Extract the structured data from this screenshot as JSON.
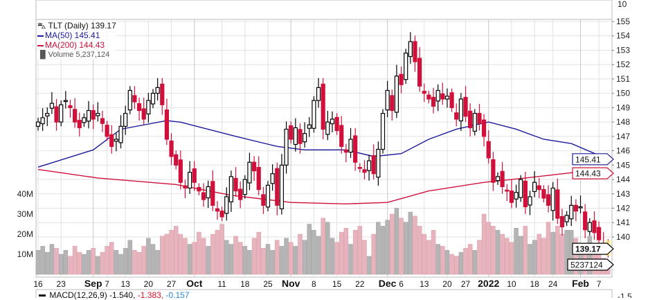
{
  "legend": {
    "symbol": "TLT (Daily) 139.17",
    "ma50": "MA(50) 145.41",
    "ma200": "MA(200) 144.43",
    "volume": "Volume 5,237,124"
  },
  "macd": {
    "label": "MACD(12,26,9)",
    "v1": "-1.540,",
    "v2": "-1.383,",
    "v3": "-0.157",
    "axis_label": "-1.5"
  },
  "top_panel_label": "10",
  "colors": {
    "up": "#000000",
    "down": "#d0103a",
    "ma50": "#1a1a9c",
    "ma200": "#d0103a",
    "vol_up": "#b4b4b4",
    "vol_down": "#e7b4bd",
    "grid": "#e2e2e2"
  },
  "chart_data": {
    "type": "candlestick",
    "title": "TLT (Daily)",
    "ylim": [
      138.3,
      155.2
    ],
    "price_ticks": [
      155,
      154,
      153,
      152,
      151,
      150,
      149,
      148,
      147,
      146,
      145,
      144,
      143,
      142,
      141,
      140
    ],
    "volume_ticks": [
      {
        "label": "40M",
        "value": 40
      },
      {
        "label": "30M",
        "value": 30
      },
      {
        "label": "20M",
        "value": 20
      },
      {
        "label": "10M",
        "value": 10
      }
    ],
    "x_labels": [
      {
        "t": "16",
        "i": 0,
        "bold": false
      },
      {
        "t": "23",
        "i": 5,
        "bold": false
      },
      {
        "t": "Sep",
        "i": 12,
        "bold": true
      },
      {
        "t": "7",
        "i": 15,
        "bold": false
      },
      {
        "t": "13",
        "i": 19,
        "bold": false
      },
      {
        "t": "20",
        "i": 24,
        "bold": false
      },
      {
        "t": "27",
        "i": 29,
        "bold": false
      },
      {
        "t": "Oct",
        "i": 34,
        "bold": true
      },
      {
        "t": "11",
        "i": 40,
        "bold": false
      },
      {
        "t": "18",
        "i": 45,
        "bold": false
      },
      {
        "t": "25",
        "i": 50,
        "bold": false
      },
      {
        "t": "Nov",
        "i": 55,
        "bold": true
      },
      {
        "t": "8",
        "i": 60,
        "bold": false
      },
      {
        "t": "15",
        "i": 65,
        "bold": false
      },
      {
        "t": "22",
        "i": 70,
        "bold": false
      },
      {
        "t": "Dec",
        "i": 76,
        "bold": true
      },
      {
        "t": "6",
        "i": 79,
        "bold": false
      },
      {
        "t": "13",
        "i": 84,
        "bold": false
      },
      {
        "t": "20",
        "i": 89,
        "bold": false
      },
      {
        "t": "27",
        "i": 93,
        "bold": false
      },
      {
        "t": "2022",
        "i": 98,
        "bold": true
      },
      {
        "t": "10",
        "i": 103,
        "bold": false
      },
      {
        "t": "18",
        "i": 108,
        "bold": false
      },
      {
        "t": "24",
        "i": 112,
        "bold": false
      },
      {
        "t": "Feb",
        "i": 118,
        "bold": true
      },
      {
        "t": "7",
        "i": 122,
        "bold": false
      }
    ],
    "close": [
      148.0,
      148.3,
      148.6,
      149.3,
      148.0,
      149.2,
      149.5,
      149.0,
      148.0,
      147.6,
      148.3,
      148.8,
      148.2,
      148.6,
      147.9,
      147.0,
      146.3,
      146.8,
      147.7,
      148.6,
      150.2,
      149.4,
      148.8,
      148.2,
      149.5,
      150.0,
      150.4,
      149.2,
      146.8,
      145.6,
      145.0,
      143.8,
      143.4,
      144.5,
      143.8,
      143.2,
      142.6,
      143.5,
      142.2,
      141.8,
      141.4,
      142.8,
      144.2,
      143.2,
      142.6,
      144.0,
      145.2,
      144.6,
      143.3,
      142.2,
      143.6,
      144.4,
      142.2,
      145.0,
      147.5,
      146.8,
      147.6,
      146.5,
      147.2,
      147.8,
      149.5,
      150.4,
      147.5,
      148.0,
      148.2,
      147.4,
      146.3,
      145.9,
      146.8,
      145.2,
      144.8,
      144.5,
      145.3,
      144.4,
      146.1,
      148.6,
      150.2,
      148.8,
      151.2,
      150.6,
      152.8,
      153.6,
      152.2,
      150.5,
      150.0,
      149.6,
      149.1,
      150.2,
      149.6,
      149.8,
      149.0,
      148.2,
      149.6,
      148.4,
      147.6,
      148.6,
      147.9,
      147.0,
      145.5,
      143.8,
      144.2,
      143.5,
      143.2,
      142.4,
      143.1,
      144.0,
      142.1,
      142.8,
      143.8,
      143.3,
      142.7,
      142.2,
      143.4,
      141.3,
      140.7,
      141.5,
      142.2,
      141.8,
      142.1,
      140.5,
      141.0,
      140.3,
      139.8,
      139.3,
      139.17
    ],
    "volume_millions": [
      12,
      14,
      11,
      15,
      13,
      10,
      12,
      9,
      14,
      11,
      10,
      12,
      13,
      9,
      11,
      14,
      16,
      12,
      10,
      13,
      17,
      12,
      11,
      14,
      18,
      15,
      12,
      19,
      20,
      22,
      24,
      20,
      18,
      15,
      16,
      21,
      18,
      14,
      20,
      22,
      25,
      17,
      15,
      19,
      16,
      14,
      12,
      18,
      21,
      13,
      15,
      12,
      17,
      14,
      18,
      16,
      14,
      20,
      17,
      25,
      22,
      19,
      28,
      26,
      18,
      16,
      21,
      23,
      15,
      22,
      24,
      17,
      9,
      20,
      26,
      24,
      27,
      30,
      33,
      28,
      26,
      31,
      29,
      24,
      20,
      17,
      22,
      15,
      14,
      12,
      10,
      9,
      11,
      13,
      15,
      12,
      17,
      30,
      26,
      24,
      22,
      20,
      18,
      16,
      23,
      19,
      24,
      15,
      17,
      20,
      18,
      26,
      21,
      24,
      20,
      22,
      22,
      18,
      15,
      12,
      19,
      14,
      10,
      8,
      5.24
    ],
    "ma50": {
      "index": [
        0,
        12,
        18,
        28,
        31,
        43,
        52,
        58,
        67,
        73,
        79,
        85,
        91,
        98,
        104,
        110,
        116,
        124
      ],
      "value": [
        144.86,
        146.06,
        147.5,
        148.1,
        147.99,
        147.0,
        146.3,
        146.06,
        146.06,
        145.6,
        145.8,
        146.8,
        147.5,
        148.0,
        147.5,
        146.8,
        146.5,
        145.41
      ]
    },
    "ma200": {
      "index": [
        0,
        13,
        30,
        42,
        55,
        67,
        76,
        85,
        97,
        106,
        116,
        124
      ],
      "value": [
        144.7,
        144.1,
        143.65,
        142.9,
        142.4,
        142.3,
        142.4,
        143.2,
        143.8,
        144.1,
        144.47,
        144.43
      ]
    },
    "price_labels": [
      {
        "name": "ma50",
        "text": "145.41"
      },
      {
        "name": "ma200",
        "text": "144.43"
      },
      {
        "name": "last",
        "text": "139.17"
      },
      {
        "name": "volume",
        "text": "5237124"
      }
    ]
  }
}
